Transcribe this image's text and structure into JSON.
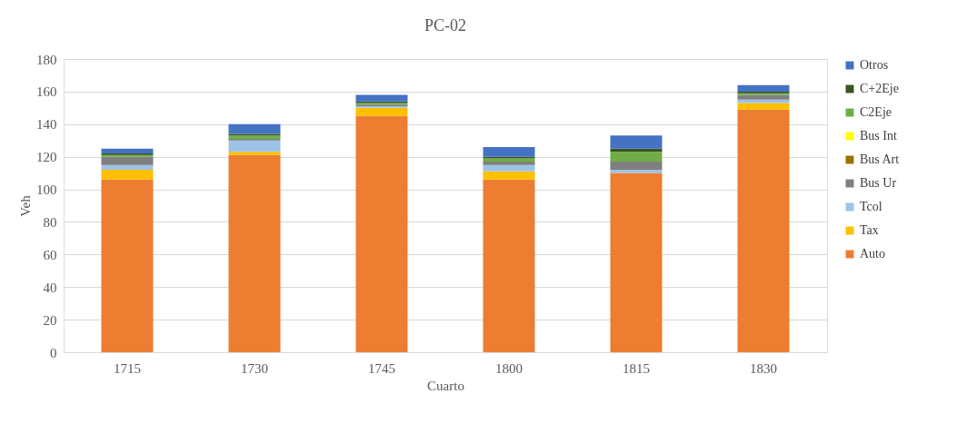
{
  "chart_data": {
    "type": "bar",
    "stacked": true,
    "title": "PC-02",
    "xlabel": "Cuarto",
    "ylabel": "Veh",
    "categories": [
      "1715",
      "1730",
      "1745",
      "1800",
      "1815",
      "1830"
    ],
    "series": [
      {
        "name": "Auto",
        "color": "#ed7d31",
        "values": [
          106,
          121,
          145,
          106,
          110,
          149
        ]
      },
      {
        "name": "Tax",
        "color": "#ffc000",
        "values": [
          6,
          2,
          5,
          5,
          0,
          4
        ]
      },
      {
        "name": "Tcol",
        "color": "#9dc3e6",
        "values": [
          3,
          7,
          1,
          4,
          2,
          2
        ]
      },
      {
        "name": "Bus Ur",
        "color": "#7f7f7f",
        "values": [
          5,
          1,
          1,
          2,
          5,
          3
        ]
      },
      {
        "name": "Bus Art",
        "color": "#997300",
        "values": [
          0,
          0,
          0,
          0,
          0,
          0
        ]
      },
      {
        "name": "Bus Int",
        "color": "#ffff00",
        "values": [
          0,
          0,
          0,
          0,
          0,
          0
        ]
      },
      {
        "name": "C2Eje",
        "color": "#70ad47",
        "values": [
          1,
          2,
          1,
          2,
          6,
          1
        ]
      },
      {
        "name": "C+2Eje",
        "color": "#375623",
        "values": [
          1,
          1,
          1,
          1,
          2,
          1
        ]
      },
      {
        "name": "Otros",
        "color": "#4472c4",
        "values": [
          3,
          6,
          4,
          6,
          8,
          4
        ]
      }
    ],
    "ylim": [
      0,
      180
    ],
    "yticks": [
      0,
      20,
      40,
      60,
      80,
      100,
      120,
      140,
      160,
      180
    ],
    "grid": "y",
    "legend": "right"
  }
}
